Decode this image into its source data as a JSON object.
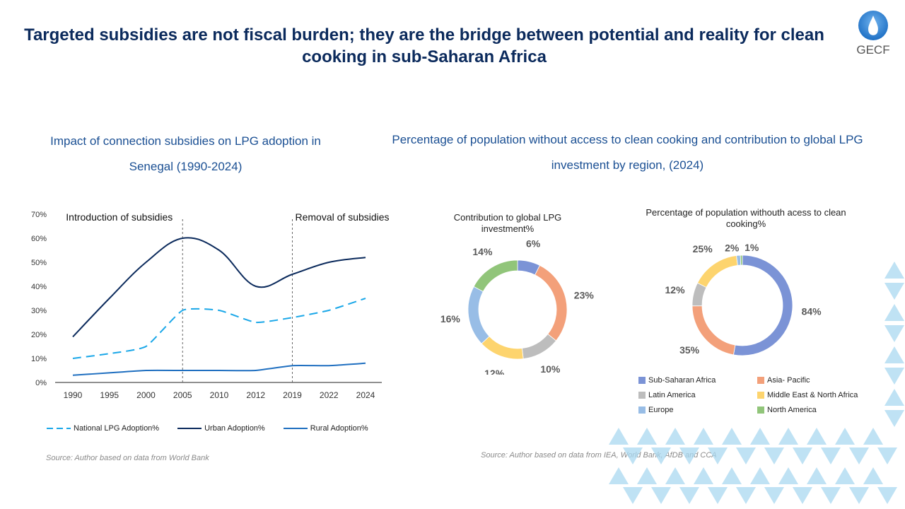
{
  "title": "Targeted subsidies are not fiscal burden; they are the bridge between potential and reality for clean cooking in sub-Saharan Africa",
  "logo": {
    "text": "GECF",
    "color": "#2a7fd0"
  },
  "left": {
    "heading": "Impact of connection subsidies on LPG adoption in Senegal (1990-2024)",
    "source": "Source: Author based on data from World Bank"
  },
  "right": {
    "heading": "Percentage of population without access to clean cooking and contribution to global LPG investment by region, (2024)",
    "source": "Source: Author based on data from IEA, World Bank, AfDB and CCA"
  },
  "chart_data": [
    {
      "type": "line",
      "categories": [
        "1990",
        "1995",
        "2000",
        "2005",
        "2010",
        "2012",
        "2019",
        "2022",
        "2024"
      ],
      "ylim": [
        0,
        70
      ],
      "yticks": [
        "0%",
        "10%",
        "20%",
        "30%",
        "40%",
        "50%",
        "60%",
        "70%"
      ],
      "annotations": [
        {
          "text": "Introduction of subsidies",
          "at": "2005"
        },
        {
          "text": "Removal of subsidies",
          "at": "2019"
        }
      ],
      "legend": "bottom",
      "series": [
        {
          "name": "National LPG Adoption%",
          "values": [
            10,
            12,
            15,
            30,
            30,
            25,
            27,
            30,
            35
          ],
          "color": "#1aa7e8",
          "dash": true
        },
        {
          "name": "Urban Adoption%",
          "values": [
            19,
            35,
            50,
            60,
            55,
            40,
            45,
            50,
            52
          ],
          "color": "#0b2a5c",
          "dash": false
        },
        {
          "name": "Rural Adoption%",
          "values": [
            3,
            4,
            5,
            5,
            5,
            5,
            7,
            7,
            8
          ],
          "color": "#1f6fc0",
          "dash": false
        }
      ]
    },
    {
      "type": "pie",
      "title": "Contribution  to global LPG investment%",
      "categories": [
        "Sub-Saharan Africa",
        "Asia- Pacific",
        "Latin America",
        "Middle East & North Africa",
        "Europe",
        "North America"
      ],
      "values": [
        6,
        23,
        10,
        12,
        16,
        14
      ],
      "labels": [
        "6%",
        "23%",
        "10%",
        "12%",
        "16%",
        "14%"
      ]
    },
    {
      "type": "pie",
      "title": "Percentage of population  withouth acess to clean cooking%",
      "categories": [
        "Sub-Saharan Africa",
        "Asia- Pacific",
        "Latin America",
        "Middle East & North Africa",
        "Europe",
        "North America"
      ],
      "values": [
        84,
        35,
        12,
        25,
        2,
        1
      ],
      "labels": [
        "84%",
        "35%",
        "12%",
        "25%",
        "2%",
        "1%"
      ],
      "legend": "bottom"
    }
  ],
  "region_colors": [
    "#7b93d6",
    "#f3a07a",
    "#bdbdbd",
    "#fdd46e",
    "#98bde6",
    "#91c57a"
  ]
}
